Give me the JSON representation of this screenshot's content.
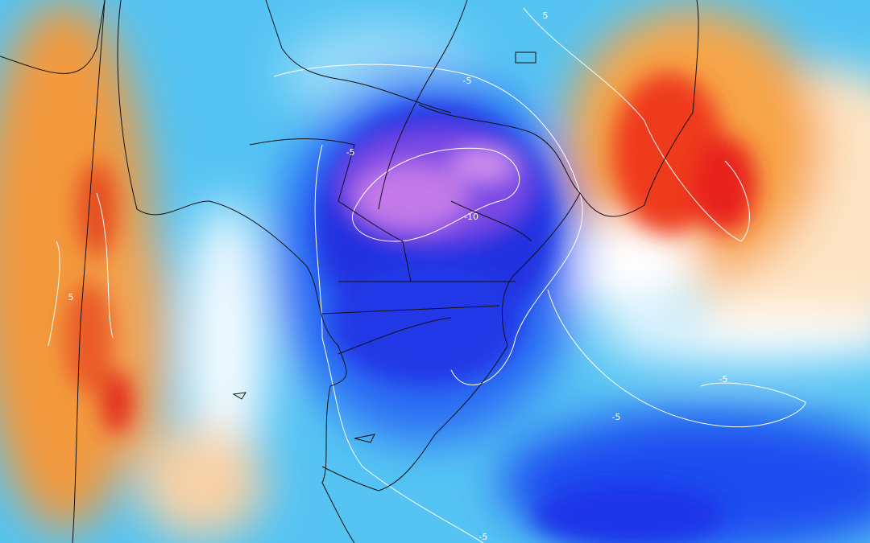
{
  "map": {
    "contour_labels": [
      "-5",
      "-5",
      "-10",
      "5",
      "5",
      "-5",
      "-5",
      "-5"
    ]
  }
}
